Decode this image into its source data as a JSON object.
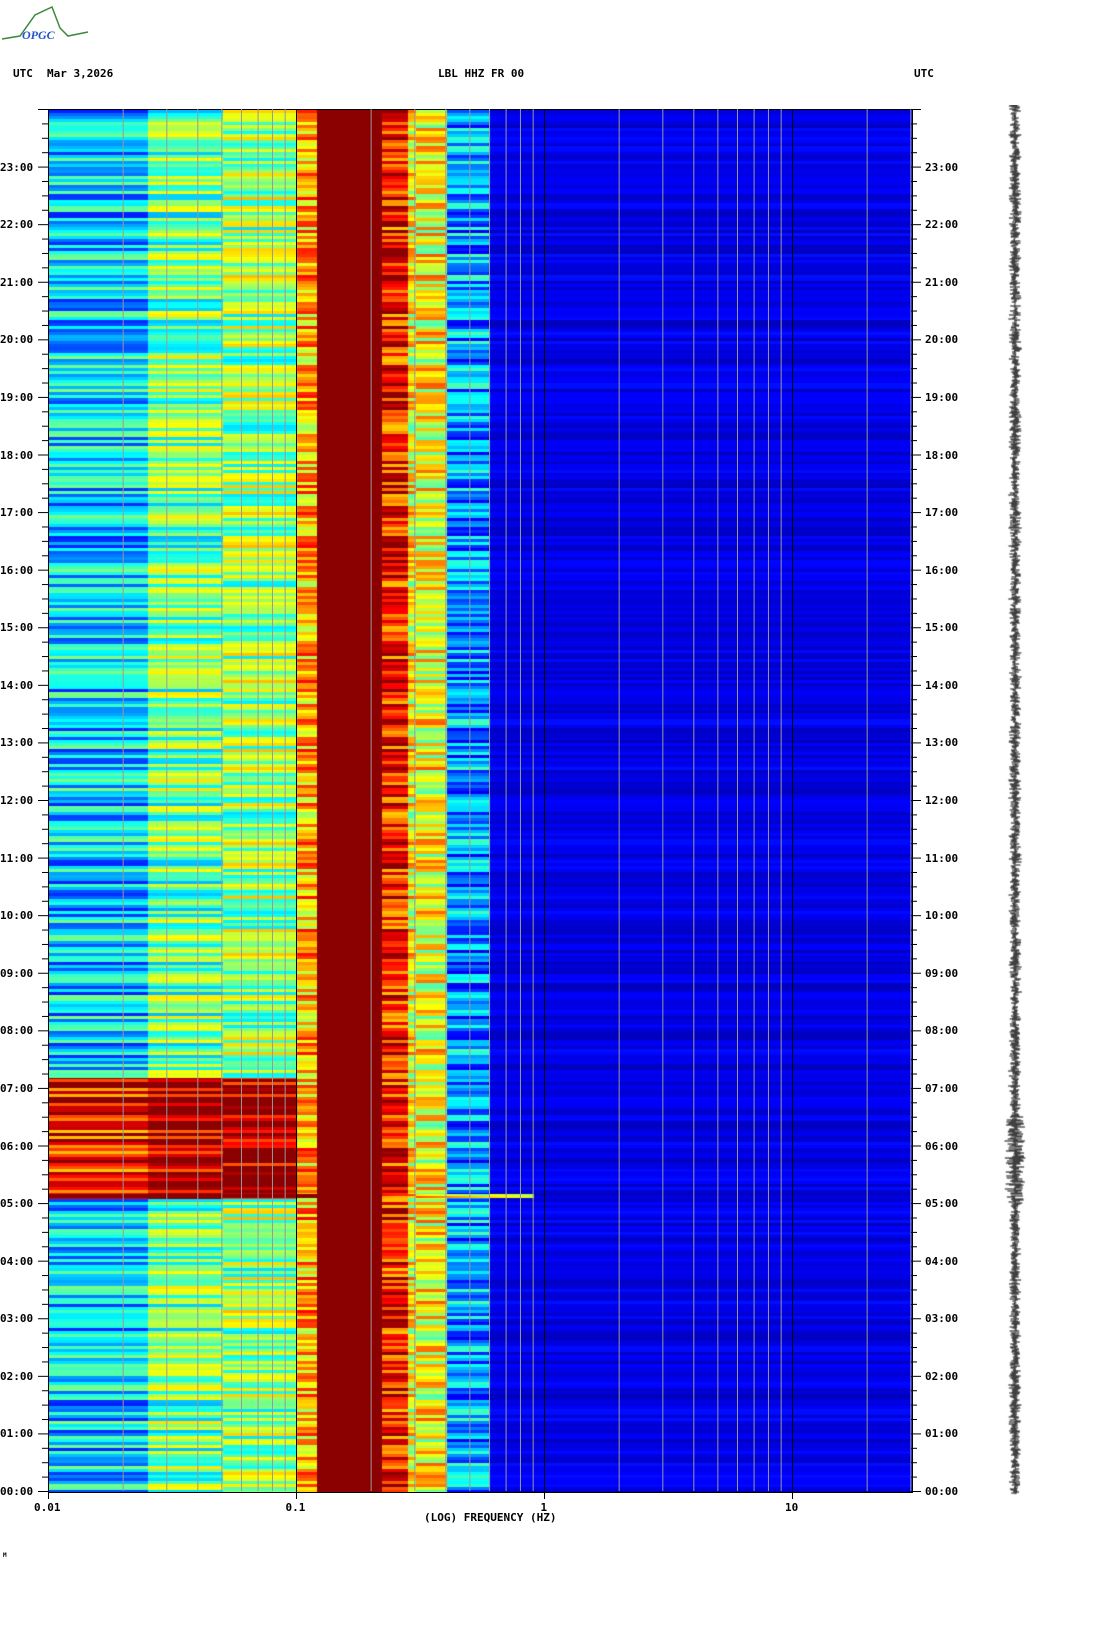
{
  "header": {
    "left_tz": "UTC",
    "date": "Mar 3,2026",
    "station": "LBL HHZ FR 00",
    "right_tz": "UTC"
  },
  "logo": {
    "text": "OPGC"
  },
  "footer_mark": "M",
  "chart_data": {
    "type": "heatmap",
    "title": "LBL HHZ FR 00",
    "xlabel": "(LOG) FREQUENCY (HZ)",
    "x_scale": "log",
    "xlim": [
      0.01,
      30
    ],
    "x_ticks": [
      "0.01",
      "0.1",
      "1",
      "10"
    ],
    "x_tick_values": [
      0.01,
      0.1,
      1,
      10
    ],
    "ylabel": "UTC",
    "ylim_hours": [
      0,
      24
    ],
    "y_ticks": [
      "00:00",
      "01:00",
      "02:00",
      "03:00",
      "04:00",
      "05:00",
      "06:00",
      "07:00",
      "08:00",
      "09:00",
      "10:00",
      "11:00",
      "12:00",
      "13:00",
      "14:00",
      "15:00",
      "16:00",
      "17:00",
      "18:00",
      "19:00",
      "20:00",
      "21:00",
      "22:00",
      "23:00"
    ],
    "colormap": "jet",
    "grid": true,
    "band_profile": [
      {
        "f_min": 0.01,
        "f_max": 0.025,
        "level": 0.33
      },
      {
        "f_min": 0.025,
        "f_max": 0.05,
        "level": 0.48
      },
      {
        "f_min": 0.05,
        "f_max": 0.1,
        "level": 0.52
      },
      {
        "f_min": 0.1,
        "f_max": 0.12,
        "level": 0.7
      },
      {
        "f_min": 0.12,
        "f_max": 0.22,
        "level": 1.0
      },
      {
        "f_min": 0.22,
        "f_max": 0.28,
        "level": 0.85
      },
      {
        "f_min": 0.28,
        "f_max": 0.4,
        "level": 0.62
      },
      {
        "f_min": 0.4,
        "f_max": 0.6,
        "level": 0.28
      },
      {
        "f_min": 0.6,
        "f_max": 30,
        "level": 0.1
      }
    ],
    "events": [
      {
        "start_hour": 5.1,
        "end_hour": 7.2,
        "note_level": 0.95,
        "f_max": 0.1
      }
    ]
  }
}
